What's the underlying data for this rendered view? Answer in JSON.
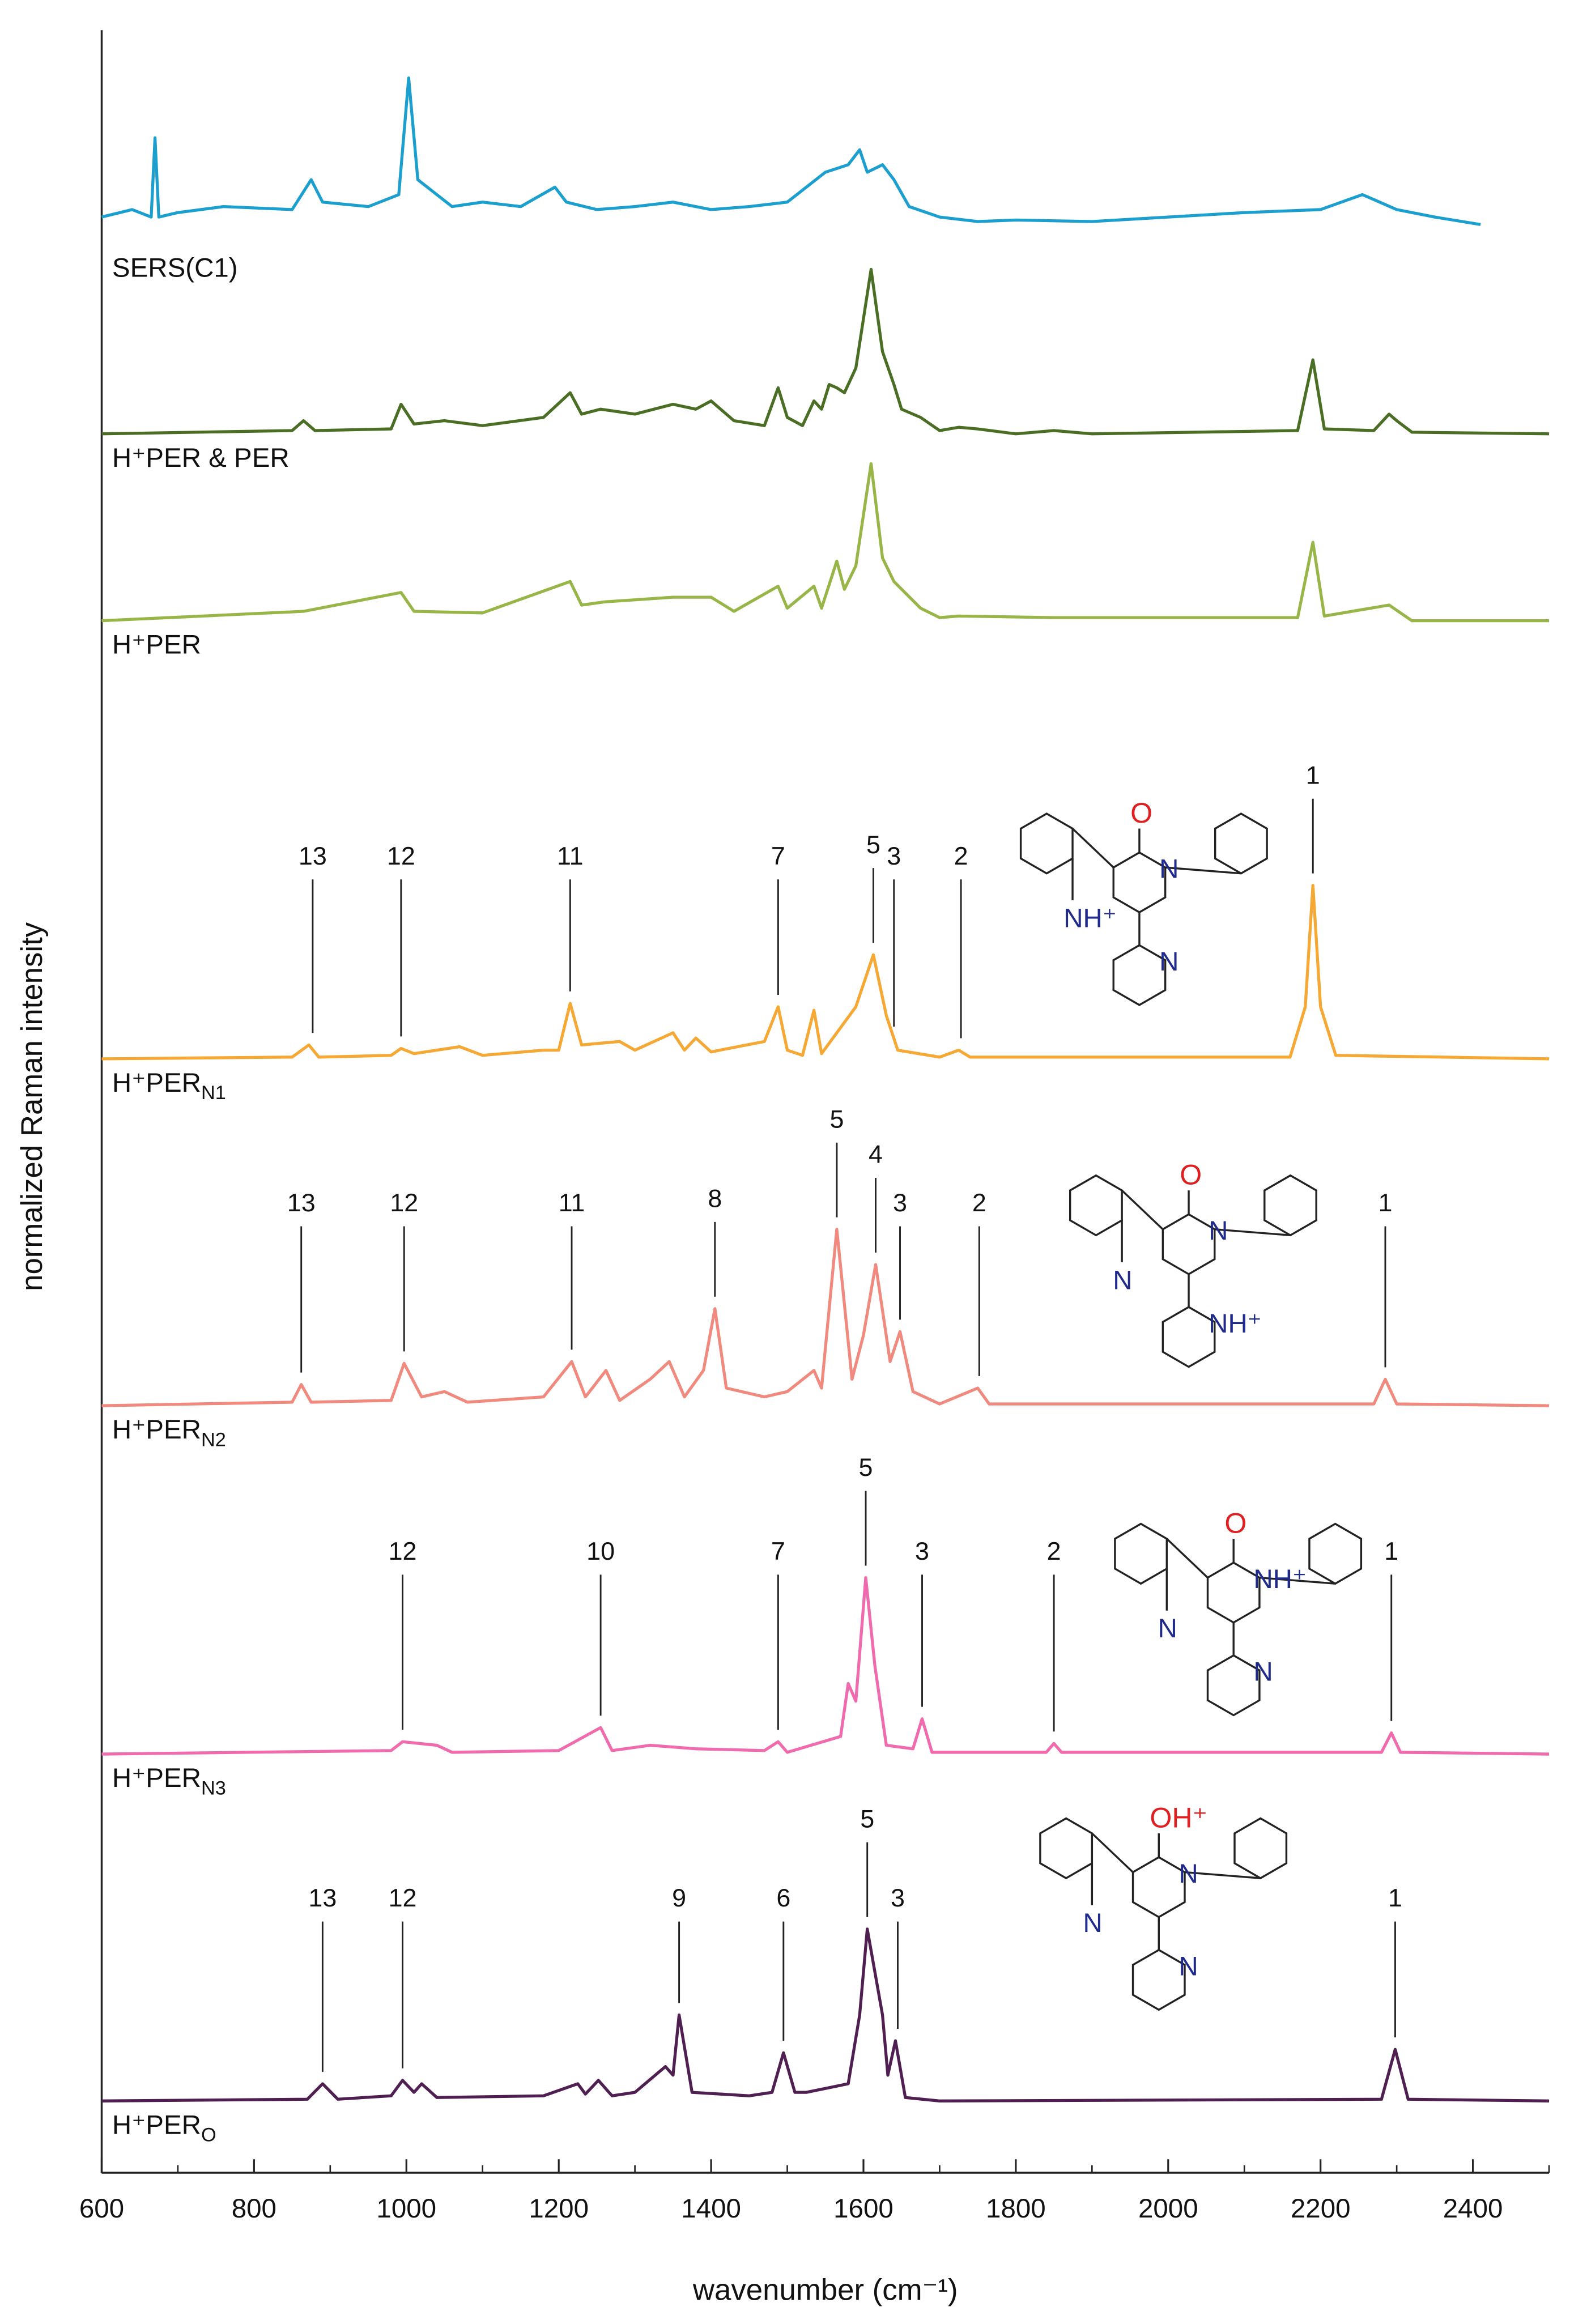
{
  "chart_data": {
    "type": "line",
    "xlabel": "wavenumber (cm⁻¹)",
    "ylabel": "normalized Raman intensity",
    "xlim": [
      600,
      2500
    ],
    "xticks": [
      600,
      800,
      1000,
      1200,
      1400,
      1600,
      1800,
      2000,
      2200,
      2400
    ],
    "xminorticks": [
      700,
      900,
      1100,
      1300,
      1500,
      1700,
      1900,
      2100,
      2300,
      2500
    ],
    "series": [
      {
        "name": "SERS(C1)",
        "color": "#1b9fcf",
        "x": [
          600,
          640,
          665,
          670,
          675,
          700,
          760,
          850,
          875,
          890,
          950,
          990,
          1003,
          1015,
          1040,
          1060,
          1100,
          1150,
          1195,
          1210,
          1250,
          1300,
          1350,
          1400,
          1450,
          1500,
          1550,
          1580,
          1595,
          1605,
          1625,
          1640,
          1660,
          1700,
          1750,
          1800,
          1900,
          2000,
          2100,
          2200,
          2255,
          2300,
          2350,
          2410
        ],
        "values": [
          0.05,
          0.1,
          0.05,
          0.58,
          0.05,
          0.08,
          0.12,
          0.1,
          0.3,
          0.15,
          0.12,
          0.2,
          0.98,
          0.3,
          0.2,
          0.12,
          0.15,
          0.12,
          0.25,
          0.15,
          0.1,
          0.12,
          0.15,
          0.1,
          0.12,
          0.15,
          0.35,
          0.4,
          0.5,
          0.35,
          0.4,
          0.3,
          0.12,
          0.05,
          0.02,
          0.03,
          0.02,
          0.05,
          0.08,
          0.1,
          0.2,
          0.1,
          0.05,
          0.0
        ]
      },
      {
        "name": "H⁺PER & PER",
        "color": "#4b6e25",
        "x": [
          600,
          850,
          865,
          880,
          980,
          993,
          1010,
          1050,
          1100,
          1180,
          1215,
          1230,
          1255,
          1300,
          1350,
          1380,
          1400,
          1430,
          1470,
          1488,
          1500,
          1520,
          1535,
          1545,
          1555,
          1565,
          1575,
          1590,
          1610,
          1625,
          1640,
          1650,
          1675,
          1700,
          1725,
          1750,
          1800,
          1850,
          1900,
          2170,
          2190,
          2205,
          2270,
          2290,
          2300,
          2320,
          2500
        ],
        "values": [
          0,
          0.02,
          0.08,
          0.02,
          0.03,
          0.18,
          0.06,
          0.08,
          0.05,
          0.1,
          0.25,
          0.12,
          0.15,
          0.12,
          0.18,
          0.15,
          0.2,
          0.08,
          0.05,
          0.28,
          0.1,
          0.05,
          0.2,
          0.15,
          0.3,
          0.28,
          0.25,
          0.4,
          1.0,
          0.5,
          0.3,
          0.15,
          0.1,
          0.02,
          0.04,
          0.03,
          0,
          0.02,
          0,
          0.02,
          0.45,
          0.03,
          0.02,
          0.12,
          0.08,
          0.01,
          0
        ]
      },
      {
        "name": "H⁺PER",
        "color": "#98b548",
        "x": [
          600,
          865,
          993,
          1010,
          1100,
          1215,
          1230,
          1260,
          1350,
          1400,
          1430,
          1488,
          1500,
          1535,
          1545,
          1565,
          1575,
          1590,
          1610,
          1625,
          1640,
          1675,
          1700,
          1725,
          1850,
          2170,
          2190,
          2205,
          2290,
          2305,
          2320,
          2500
        ],
        "values": [
          0,
          0.06,
          0.18,
          0.06,
          0.05,
          0.25,
          0.1,
          0.12,
          0.15,
          0.15,
          0.06,
          0.22,
          0.08,
          0.22,
          0.08,
          0.38,
          0.2,
          0.35,
          1.0,
          0.4,
          0.25,
          0.08,
          0.02,
          0.03,
          0.02,
          0.02,
          0.5,
          0.03,
          0.1,
          0.05,
          0,
          0
        ]
      },
      {
        "name": "H⁺PER",
        "subscript": "N1",
        "color": "#f5a833",
        "x": [
          600,
          850,
          872,
          885,
          980,
          993,
          1010,
          1070,
          1100,
          1180,
          1200,
          1215,
          1230,
          1280,
          1300,
          1350,
          1365,
          1380,
          1400,
          1470,
          1488,
          1500,
          1520,
          1535,
          1545,
          1590,
          1613,
          1630,
          1645,
          1700,
          1725,
          1740,
          2160,
          2180,
          2190,
          2200,
          2220,
          2500
        ],
        "values": [
          0,
          0.01,
          0.08,
          0.01,
          0.02,
          0.06,
          0.03,
          0.07,
          0.02,
          0.05,
          0.05,
          0.32,
          0.08,
          0.1,
          0.05,
          0.15,
          0.05,
          0.12,
          0.04,
          0.1,
          0.3,
          0.05,
          0.02,
          0.28,
          0.03,
          0.3,
          0.6,
          0.25,
          0.05,
          0.01,
          0.05,
          0.01,
          0.01,
          0.3,
          1.0,
          0.3,
          0.02,
          0
        ],
        "peaks": [
          {
            "x": 877,
            "label": "13"
          },
          {
            "x": 993,
            "label": "12"
          },
          {
            "x": 1215,
            "label": "11"
          },
          {
            "x": 1488,
            "label": "7"
          },
          {
            "x": 1613,
            "label": "5"
          },
          {
            "x": 1640,
            "label": "3"
          },
          {
            "x": 1728,
            "label": "2"
          },
          {
            "x": 2190,
            "label": "1"
          }
        ],
        "structure": {
          "oxygen": "O",
          "amide_n": "N",
          "nitrile_n": "NH⁺",
          "pyridine_n": "N"
        }
      },
      {
        "name": "H⁺PER",
        "subscript": "N2",
        "color": "#f08a7e",
        "x": [
          600,
          850,
          862,
          875,
          980,
          997,
          1020,
          1050,
          1080,
          1180,
          1217,
          1235,
          1262,
          1280,
          1320,
          1345,
          1365,
          1390,
          1405,
          1420,
          1470,
          1500,
          1535,
          1545,
          1565,
          1585,
          1600,
          1616,
          1635,
          1648,
          1665,
          1700,
          1750,
          1765,
          2270,
          2285,
          2300,
          2500
        ],
        "values": [
          0,
          0.02,
          0.12,
          0.02,
          0.03,
          0.24,
          0.05,
          0.08,
          0.02,
          0.05,
          0.25,
          0.05,
          0.2,
          0.03,
          0.15,
          0.25,
          0.05,
          0.2,
          0.55,
          0.1,
          0.05,
          0.08,
          0.2,
          0.1,
          1.0,
          0.15,
          0.4,
          0.8,
          0.25,
          0.42,
          0.08,
          0.01,
          0.1,
          0.01,
          0.01,
          0.15,
          0.01,
          0
        ],
        "peaks": [
          {
            "x": 862,
            "label": "13"
          },
          {
            "x": 997,
            "label": "12"
          },
          {
            "x": 1217,
            "label": "11"
          },
          {
            "x": 1405,
            "label": "8"
          },
          {
            "x": 1565,
            "label": "5"
          },
          {
            "x": 1616,
            "label": "4"
          },
          {
            "x": 1648,
            "label": "3"
          },
          {
            "x": 1752,
            "label": "2"
          },
          {
            "x": 2285,
            "label": "1"
          }
        ],
        "structure": {
          "oxygen": "O",
          "amide_n": "N",
          "nitrile_n": "N",
          "pyridine_n": "NH⁺"
        }
      },
      {
        "name": "H⁺PER",
        "subscript": "N3",
        "color": "#f06aae",
        "x": [
          600,
          980,
          995,
          1040,
          1060,
          1200,
          1255,
          1270,
          1320,
          1380,
          1470,
          1488,
          1500,
          1570,
          1580,
          1590,
          1603,
          1615,
          1630,
          1665,
          1677,
          1690,
          1840,
          1850,
          1860,
          2280,
          2293,
          2305,
          2500
        ],
        "values": [
          0,
          0.02,
          0.07,
          0.05,
          0.01,
          0.02,
          0.15,
          0.02,
          0.05,
          0.03,
          0.02,
          0.07,
          0.01,
          0.1,
          0.4,
          0.3,
          1.0,
          0.5,
          0.05,
          0.03,
          0.2,
          0.01,
          0.01,
          0.06,
          0.01,
          0.01,
          0.12,
          0.01,
          0
        ],
        "peaks": [
          {
            "x": 995,
            "label": "12"
          },
          {
            "x": 1255,
            "label": "10"
          },
          {
            "x": 1488,
            "label": "7"
          },
          {
            "x": 1603,
            "label": "5"
          },
          {
            "x": 1677,
            "label": "3"
          },
          {
            "x": 1850,
            "label": "2"
          },
          {
            "x": 2293,
            "label": "1"
          }
        ],
        "structure": {
          "oxygen": "O",
          "amide_n": "NH⁺",
          "nitrile_n": "N",
          "pyridine_n": "N"
        }
      },
      {
        "name": "H⁺PER",
        "subscript": "O",
        "color": "#4f1f52",
        "x": [
          600,
          870,
          890,
          910,
          980,
          995,
          1010,
          1020,
          1040,
          1180,
          1225,
          1235,
          1252,
          1270,
          1300,
          1340,
          1350,
          1358,
          1375,
          1450,
          1480,
          1495,
          1510,
          1525,
          1580,
          1595,
          1605,
          1625,
          1632,
          1642,
          1655,
          1700,
          2280,
          2298,
          2315,
          2500
        ],
        "values": [
          0,
          0.01,
          0.1,
          0.01,
          0.03,
          0.12,
          0.05,
          0.1,
          0.02,
          0.03,
          0.1,
          0.04,
          0.12,
          0.03,
          0.05,
          0.2,
          0.15,
          0.5,
          0.05,
          0.03,
          0.05,
          0.28,
          0.05,
          0.05,
          0.1,
          0.5,
          1.0,
          0.5,
          0.15,
          0.35,
          0.02,
          0,
          0.01,
          0.3,
          0.01,
          0
        ],
        "peaks": [
          {
            "x": 890,
            "label": "13"
          },
          {
            "x": 995,
            "label": "12"
          },
          {
            "x": 1358,
            "label": "9"
          },
          {
            "x": 1495,
            "label": "6"
          },
          {
            "x": 1605,
            "label": "5"
          },
          {
            "x": 1645,
            "label": "3"
          },
          {
            "x": 2298,
            "label": "1"
          }
        ],
        "structure": {
          "oxygen": "OH⁺",
          "amide_n": "N",
          "nitrile_n": "N",
          "pyridine_n": "N"
        }
      }
    ]
  }
}
